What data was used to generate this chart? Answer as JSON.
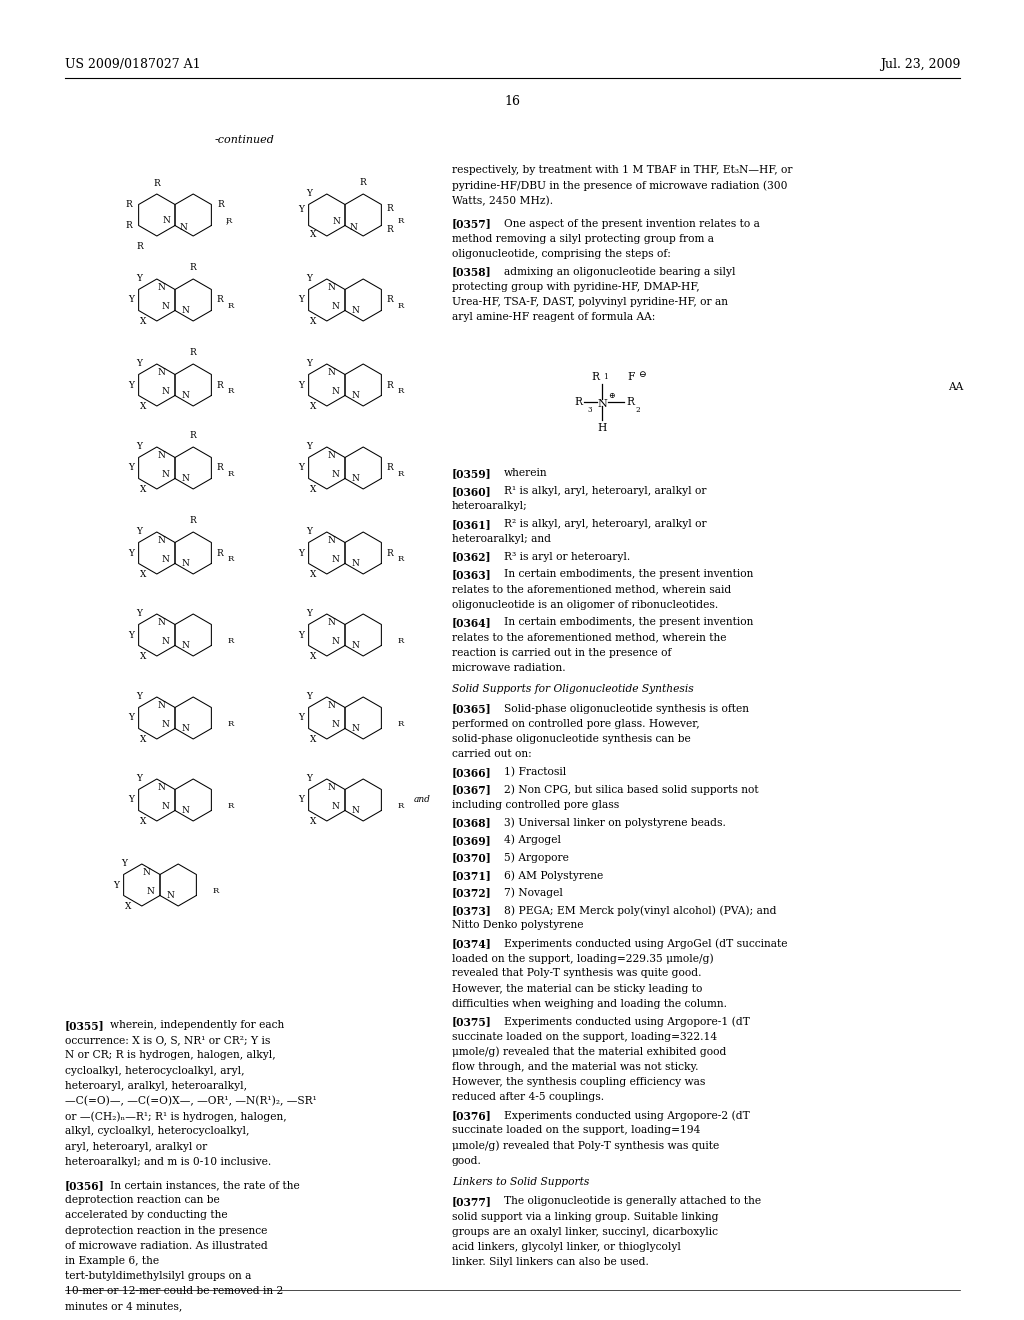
{
  "page_header_left": "US 2009/0187027 A1",
  "page_header_right": "Jul. 23, 2009",
  "page_number": "16",
  "continued_label": "-continued",
  "background_color": "#ffffff",
  "text_color": "#000000"
}
